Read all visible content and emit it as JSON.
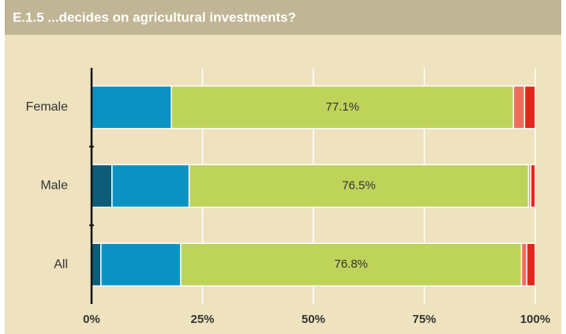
{
  "chart_data": {
    "type": "stacked-bar-horizontal",
    "title": "E.1.5 ...decides on agricultural investments?",
    "categories": [
      "Female",
      "Male",
      "All"
    ],
    "series": [
      {
        "color": "#0d5c78",
        "values": [
          0,
          4.6,
          2.1
        ]
      },
      {
        "color": "#0a93c2",
        "values": [
          18.0,
          17.4,
          18.0
        ]
      },
      {
        "color": "#bed35a",
        "values": [
          77.1,
          76.5,
          76.8
        ],
        "value_labels": [
          "77.1%",
          "76.5%",
          "76.8%"
        ]
      },
      {
        "color": "#f26b5f",
        "values": [
          2.5,
          0.5,
          1.2
        ]
      },
      {
        "color": "#e3261b",
        "values": [
          2.4,
          1.0,
          1.9
        ]
      }
    ],
    "xlim": [
      0,
      100
    ],
    "xticks": [
      {
        "value": 0,
        "label": "0%"
      },
      {
        "value": 25,
        "label": "25%"
      },
      {
        "value": 50,
        "label": "50%"
      },
      {
        "value": 75,
        "label": "75%"
      },
      {
        "value": 100,
        "label": "100%"
      }
    ],
    "grid": true
  }
}
